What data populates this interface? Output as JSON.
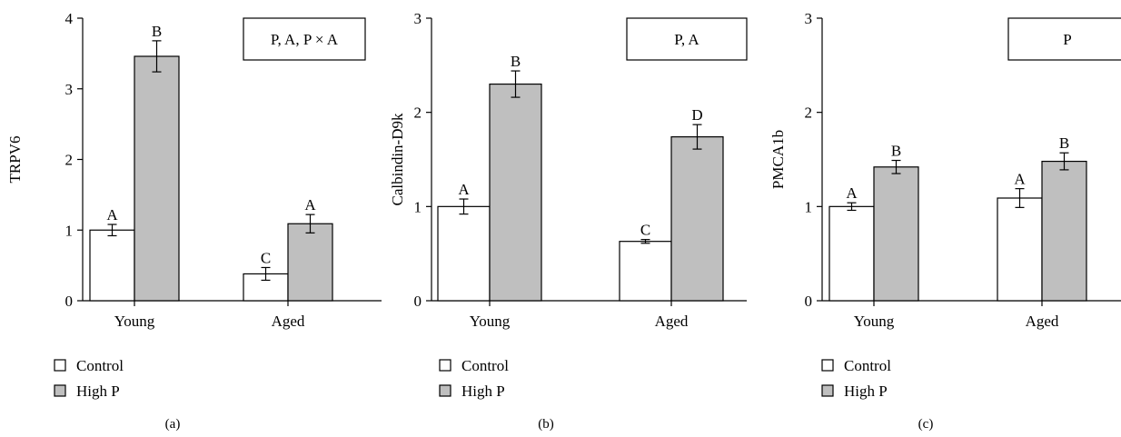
{
  "legend": [
    {
      "label": "Control",
      "color": "#ffffff"
    },
    {
      "label": "High P",
      "color": "#bfbfbf"
    }
  ],
  "chart_data": [
    {
      "type": "bar",
      "panel_label": "(a)",
      "ylabel": "TRPV6",
      "ylim": [
        0,
        4
      ],
      "yticks": [
        0,
        1,
        2,
        3,
        4
      ],
      "categories": [
        "Young",
        "Aged"
      ],
      "stat_box": "P, A, P × A",
      "series": [
        {
          "name": "Control",
          "values": [
            1.0,
            0.38
          ],
          "errors": [
            0.08,
            0.09
          ],
          "letters": [
            "A",
            "C"
          ]
        },
        {
          "name": "High P",
          "values": [
            3.46,
            1.09
          ],
          "errors": [
            0.22,
            0.13
          ],
          "letters": [
            "B",
            "A"
          ]
        }
      ]
    },
    {
      "type": "bar",
      "panel_label": "(b)",
      "ylabel": "Calbindin-D9k",
      "ylim": [
        0,
        3
      ],
      "yticks": [
        0,
        1,
        2,
        3
      ],
      "categories": [
        "Young",
        "Aged"
      ],
      "stat_box": "P, A",
      "series": [
        {
          "name": "Control",
          "values": [
            1.0,
            0.63
          ],
          "errors": [
            0.08,
            0.02
          ],
          "letters": [
            "A",
            "C"
          ]
        },
        {
          "name": "High P",
          "values": [
            2.3,
            1.74
          ],
          "errors": [
            0.14,
            0.13
          ],
          "letters": [
            "B",
            "D"
          ]
        }
      ]
    },
    {
      "type": "bar",
      "panel_label": "(c)",
      "ylabel": "PMCA1b",
      "ylim": [
        0,
        3
      ],
      "yticks": [
        0,
        1,
        2,
        3
      ],
      "categories": [
        "Young",
        "Aged"
      ],
      "stat_box": "P",
      "series": [
        {
          "name": "Control",
          "values": [
            1.0,
            1.09
          ],
          "errors": [
            0.04,
            0.1
          ],
          "letters": [
            "A",
            "A"
          ]
        },
        {
          "name": "High P",
          "values": [
            1.42,
            1.48
          ],
          "errors": [
            0.07,
            0.09
          ],
          "letters": [
            "B",
            "B"
          ]
        }
      ]
    }
  ]
}
